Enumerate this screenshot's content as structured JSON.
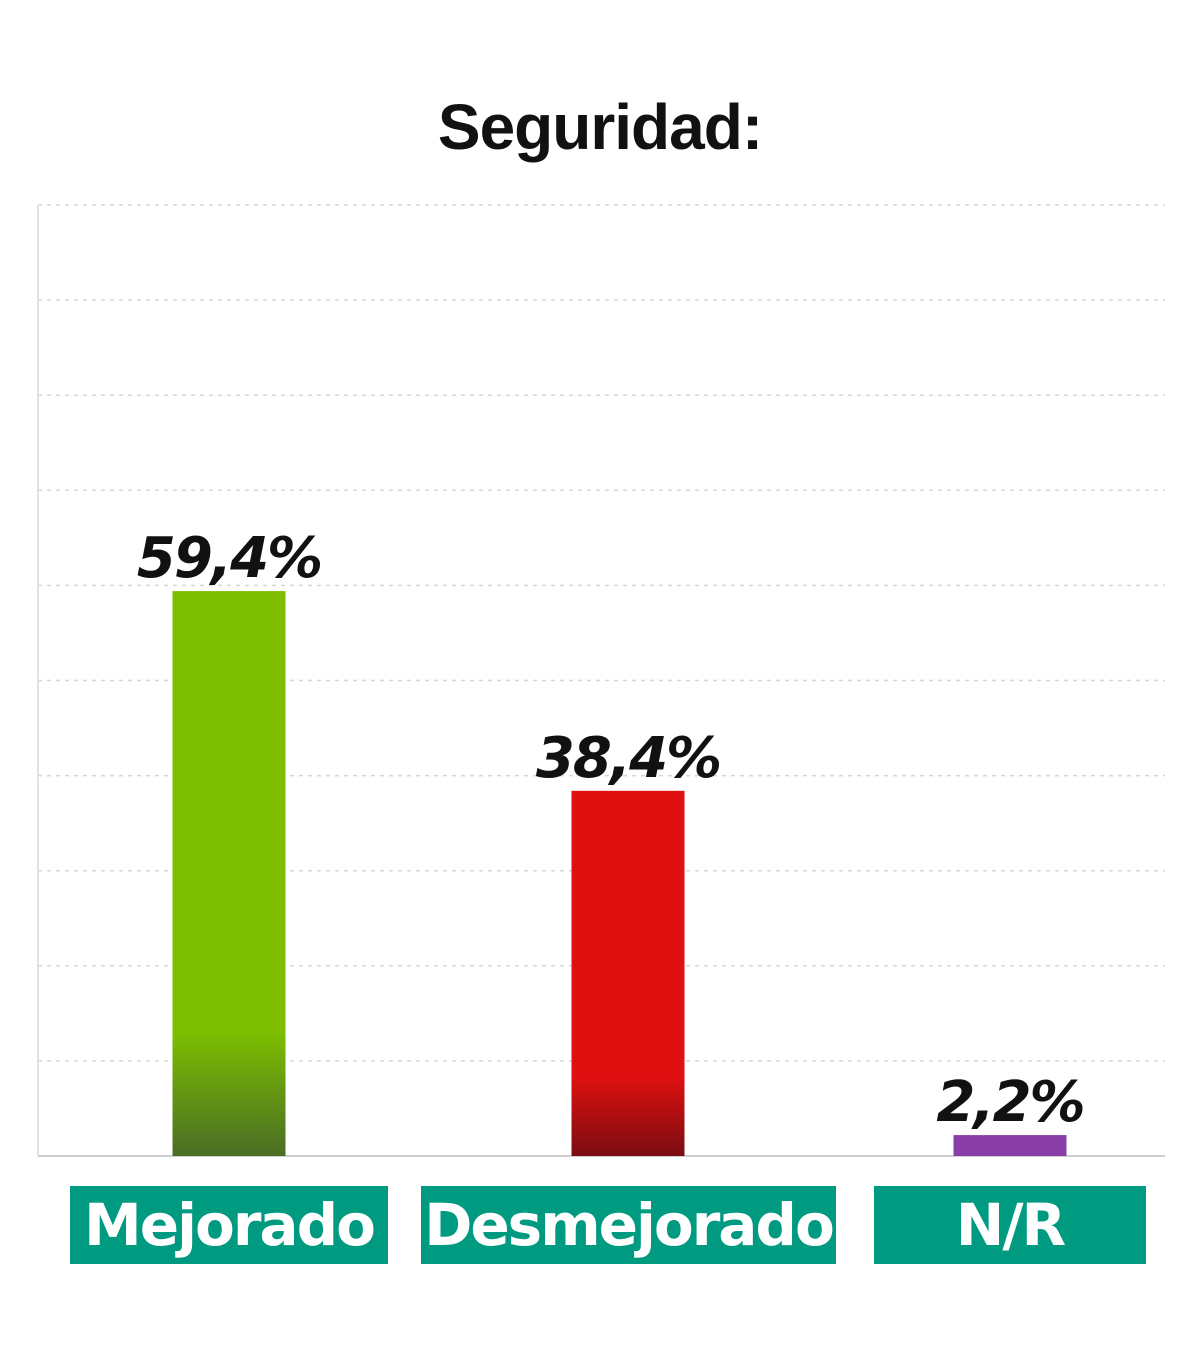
{
  "chart_data": {
    "type": "bar",
    "title": "Seguridad:",
    "categories": [
      "Mejorado",
      "Desmejorado",
      "N/R"
    ],
    "values": [
      59.4,
      38.4,
      2.2
    ],
    "value_labels": [
      "59,4%",
      "38,4%",
      "2,2%"
    ],
    "ylim": [
      0,
      100
    ],
    "grid": true,
    "colors": [
      "#7dbf00",
      "#e01010",
      "#8a3fa8"
    ],
    "bottom_shades": [
      "#4a6d25",
      "#7a0c12",
      "#6b2f86"
    ],
    "category_box_color": "#009a80"
  }
}
